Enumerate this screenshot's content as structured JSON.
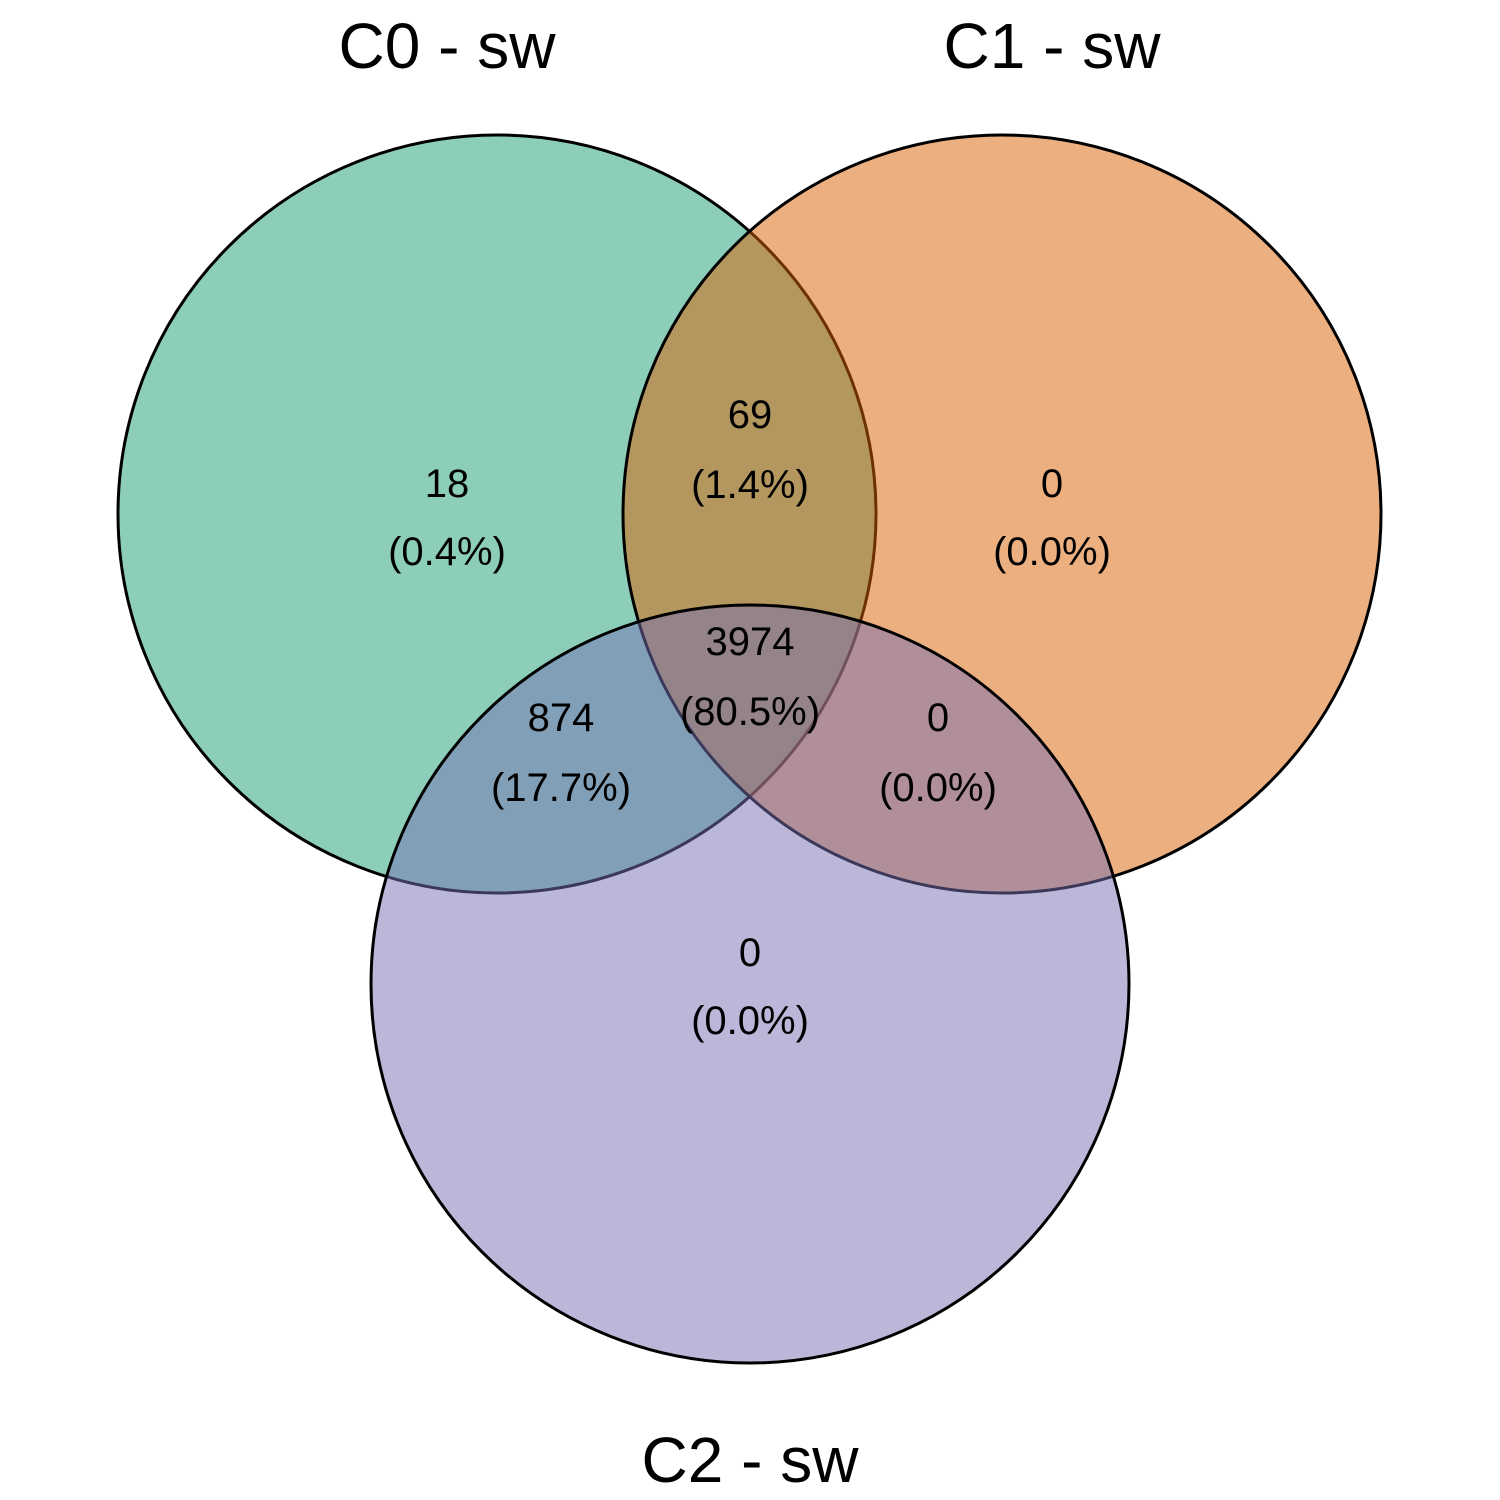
{
  "diagram": {
    "type": "venn",
    "sets": [
      {
        "label": "C0 - sw",
        "color": "#1b9e77",
        "opacity": 0.5
      },
      {
        "label": "C1 - sw",
        "color": "#d95f02",
        "opacity": 0.5
      },
      {
        "label": "C2 - sw",
        "color": "#7570b3",
        "opacity": 0.5
      }
    ],
    "regions": [
      {
        "id": "c0_only",
        "sets": [
          "C0 - sw"
        ],
        "count": "18",
        "percent": "(0.4%)"
      },
      {
        "id": "c0_c1",
        "sets": [
          "C0 - sw",
          "C1 - sw"
        ],
        "count": "69",
        "percent": "(1.4%)"
      },
      {
        "id": "c1_only",
        "sets": [
          "C1 - sw"
        ],
        "count": "0",
        "percent": "(0.0%)"
      },
      {
        "id": "c0_c1_c2",
        "sets": [
          "C0 - sw",
          "C1 - sw",
          "C2 - sw"
        ],
        "count": "3974",
        "percent": "(80.5%)"
      },
      {
        "id": "c0_c2",
        "sets": [
          "C0 - sw",
          "C2 - sw"
        ],
        "count": "874",
        "percent": "(17.7%)"
      },
      {
        "id": "c1_c2",
        "sets": [
          "C1 - sw",
          "C2 - sw"
        ],
        "count": "0",
        "percent": "(0.0%)"
      },
      {
        "id": "c2_only",
        "sets": [
          "C2 - sw"
        ],
        "count": "0",
        "percent": "(0.0%)"
      }
    ]
  }
}
